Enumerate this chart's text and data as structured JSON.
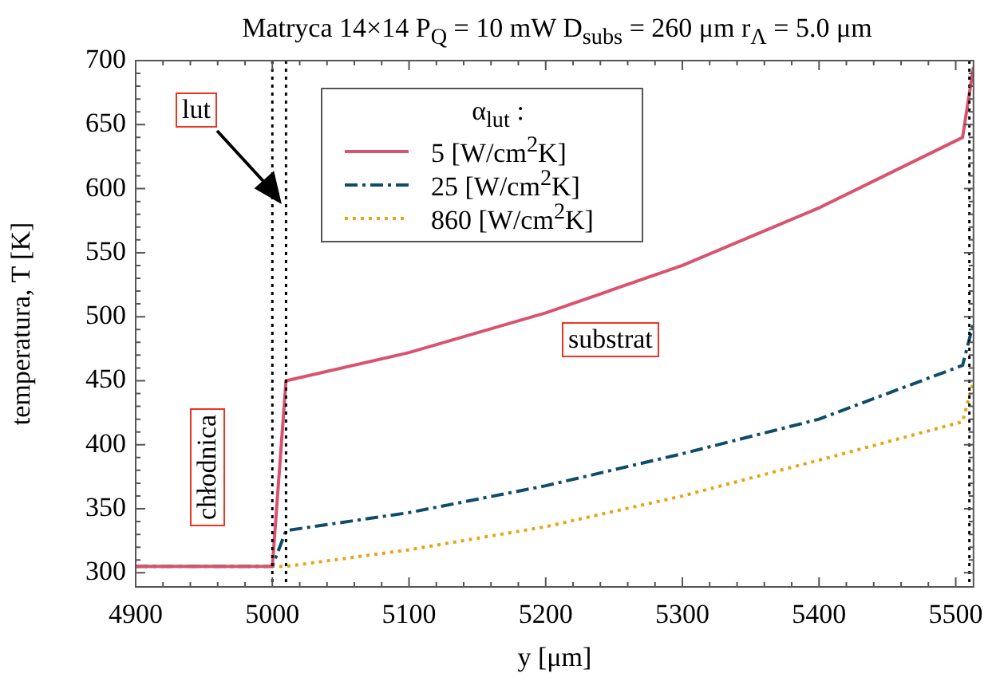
{
  "chart_data": {
    "type": "line",
    "title": "Matryca 14×14   P$_{Q}$ = 10 mW   D$_{subs}$ = 260 μm   r$_{Λ}$ = 5.0 μm",
    "xlabel": "y [μm]",
    "ylabel": "temperatura, T [K]",
    "legend_title": "α$_{lut}$ :",
    "x": [
      4900,
      4950,
      5000,
      5010,
      5100,
      5200,
      5300,
      5400,
      5505,
      5513
    ],
    "series": [
      {
        "name": "5 [W/cm$^{2}$K]",
        "color": "#d9536f",
        "line_style": "solid",
        "values": [
          305,
          305,
          305,
          450,
          472,
          503,
          540,
          585,
          640,
          695
        ]
      },
      {
        "name": "25 [W/cm$^{2}$K]",
        "color": "#0f4c6b",
        "line_style": "dashed",
        "values": [
          305,
          305,
          305,
          333,
          347,
          368,
          393,
          420,
          462,
          495
        ]
      },
      {
        "name": "860 [W/cm$^{2}$K]",
        "color": "#e8a317",
        "line_style": "dotted",
        "values": [
          305,
          305,
          305,
          305,
          318,
          336,
          360,
          388,
          418,
          450
        ]
      }
    ],
    "xlim": [
      4900,
      5513
    ],
    "xticks": [
      4900,
      5000,
      5100,
      5200,
      5300,
      5400,
      5500
    ],
    "ylim": [
      289,
      700
    ],
    "yticks": [
      300,
      350,
      400,
      450,
      500,
      550,
      600,
      650,
      700
    ],
    "ref_lines": [
      {
        "axis": "x",
        "value": 5000,
        "color": "#000000",
        "line_style": "dotted"
      },
      {
        "axis": "x",
        "value": 5010,
        "color": "#000000",
        "line_style": "dotted"
      },
      {
        "axis": "x",
        "value": 5510,
        "color": "#000000",
        "line_style": "dotted"
      }
    ],
    "annotations": [
      "lut",
      "chłodnica",
      "substrat"
    ],
    "legend": "top",
    "grid": false
  }
}
